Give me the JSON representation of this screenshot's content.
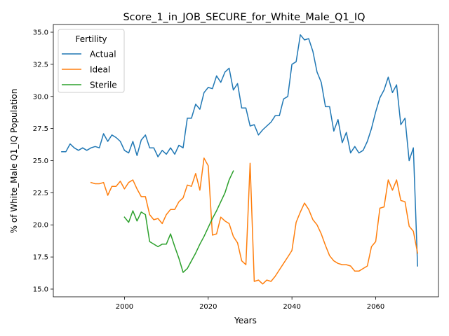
{
  "chart_data": {
    "type": "line",
    "title": "Score_1_in_JOB_SECURE_for_White_Male_Q1_IQ",
    "xlabel": "Years",
    "ylabel": "% of White_Male Q1_IQ Population",
    "xlim": [
      1983,
      2075
    ],
    "ylim": [
      14.4,
      35.6
    ],
    "xticks": [
      2000,
      2020,
      2040,
      2060
    ],
    "yticks": [
      15.0,
      17.5,
      20.0,
      22.5,
      25.0,
      27.5,
      30.0,
      32.5,
      35.0
    ],
    "xtick_labels": [
      "2000",
      "2020",
      "2040",
      "2060"
    ],
    "ytick_labels": [
      "15.0",
      "17.5",
      "20.0",
      "22.5",
      "25.0",
      "27.5",
      "30.0",
      "32.5",
      "35.0"
    ],
    "grid": false,
    "legend": {
      "title": "Fertility",
      "placement": "top-left"
    },
    "series": [
      {
        "name": "Actual",
        "color": "#1f77b4",
        "x": [
          1985,
          1986,
          1987,
          1988,
          1989,
          1990,
          1991,
          1992,
          1993,
          1994,
          1995,
          1996,
          1997,
          1998,
          1999,
          2000,
          2001,
          2002,
          2003,
          2004,
          2005,
          2006,
          2007,
          2008,
          2009,
          2010,
          2011,
          2012,
          2013,
          2014,
          2015,
          2016,
          2017,
          2018,
          2019,
          2020,
          2021,
          2022,
          2023,
          2024,
          2025,
          2026,
          2027,
          2028,
          2029,
          2030,
          2031,
          2032,
          2033,
          2034,
          2035,
          2036,
          2037,
          2038,
          2039,
          2040,
          2041,
          2042,
          2043,
          2044,
          2045,
          2046,
          2047,
          2048,
          2049,
          2050,
          2051,
          2052,
          2053,
          2054,
          2055,
          2056,
          2057,
          2058,
          2059,
          2060,
          2061,
          2062,
          2063,
          2064,
          2065,
          2066,
          2067,
          2068,
          2069,
          2070
        ],
        "y": [
          25.7,
          25.7,
          26.3,
          26.0,
          25.8,
          26.0,
          25.8,
          26.0,
          26.1,
          26.0,
          27.1,
          26.5,
          27.0,
          26.8,
          26.5,
          25.8,
          25.6,
          26.5,
          25.4,
          26.6,
          27.0,
          26.0,
          26.0,
          25.3,
          25.8,
          25.5,
          26.0,
          25.5,
          26.2,
          26.0,
          28.3,
          28.3,
          29.4,
          29.0,
          30.3,
          30.7,
          30.6,
          31.6,
          31.1,
          31.9,
          32.2,
          30.5,
          31.0,
          29.1,
          29.1,
          27.7,
          27.8,
          27.0,
          27.4,
          27.7,
          28.0,
          28.5,
          28.5,
          29.8,
          30.0,
          32.5,
          32.7,
          34.8,
          34.4,
          34.5,
          33.5,
          31.9,
          31.1,
          29.2,
          29.2,
          27.3,
          28.2,
          26.4,
          27.2,
          25.6,
          26.1,
          25.6,
          25.8,
          26.5,
          27.5,
          28.8,
          29.9,
          30.5,
          31.5,
          30.3,
          30.9,
          27.8,
          28.3,
          25.0,
          26.0,
          16.8
        ]
      },
      {
        "name": "Ideal",
        "color": "#ff7f0e",
        "x": [
          1992,
          1993,
          1994,
          1995,
          1996,
          1997,
          1998,
          1999,
          2000,
          2001,
          2002,
          2003,
          2004,
          2005,
          2006,
          2007,
          2008,
          2009,
          2010,
          2011,
          2012,
          2013,
          2014,
          2015,
          2016,
          2017,
          2018,
          2019,
          2020,
          2021,
          2022,
          2023,
          2024,
          2025,
          2026,
          2027,
          2028,
          2029,
          2030,
          2031,
          2032,
          2033,
          2034,
          2035,
          2036,
          2037,
          2038,
          2039,
          2040,
          2041,
          2042,
          2043,
          2044,
          2045,
          2046,
          2047,
          2048,
          2049,
          2050,
          2051,
          2052,
          2053,
          2054,
          2055,
          2056,
          2057,
          2058,
          2059,
          2060,
          2061,
          2062,
          2063,
          2064,
          2065,
          2066,
          2067,
          2068,
          2069,
          2070
        ],
        "y": [
          23.3,
          23.2,
          23.2,
          23.3,
          22.3,
          23.0,
          23.0,
          23.4,
          22.8,
          23.3,
          23.5,
          22.8,
          22.2,
          22.2,
          20.8,
          20.4,
          20.5,
          20.1,
          20.8,
          21.2,
          21.2,
          21.8,
          22.1,
          23.1,
          23.0,
          24.0,
          22.7,
          25.2,
          24.6,
          19.2,
          19.3,
          20.6,
          20.3,
          20.1,
          19.1,
          18.6,
          17.2,
          16.9,
          24.8,
          15.6,
          15.7,
          15.4,
          15.7,
          15.6,
          16.0,
          16.5,
          17.0,
          17.5,
          18.0,
          20.2,
          21.0,
          21.7,
          21.2,
          20.4,
          20.0,
          19.3,
          18.4,
          17.6,
          17.2,
          17.0,
          16.9,
          16.9,
          16.8,
          16.4,
          16.4,
          16.6,
          16.8,
          18.3,
          18.7,
          21.3,
          21.4,
          23.5,
          22.7,
          23.5,
          21.9,
          21.8,
          19.9,
          19.5,
          17.8
        ]
      },
      {
        "name": "Sterile",
        "color": "#2ca02c",
        "x": [
          2000,
          2001,
          2002,
          2003,
          2004,
          2005,
          2006,
          2007,
          2008,
          2009,
          2010,
          2011,
          2012,
          2013,
          2014,
          2015,
          2016,
          2017,
          2018,
          2019,
          2020,
          2021,
          2022,
          2023,
          2024,
          2025,
          2026
        ],
        "y": [
          20.6,
          20.2,
          21.1,
          20.3,
          21.0,
          20.8,
          18.7,
          18.5,
          18.3,
          18.5,
          18.5,
          19.3,
          18.3,
          17.4,
          16.3,
          16.6,
          17.2,
          17.8,
          18.5,
          19.1,
          19.8,
          20.5,
          21.1,
          21.8,
          22.5,
          23.5,
          24.2
        ]
      }
    ]
  }
}
